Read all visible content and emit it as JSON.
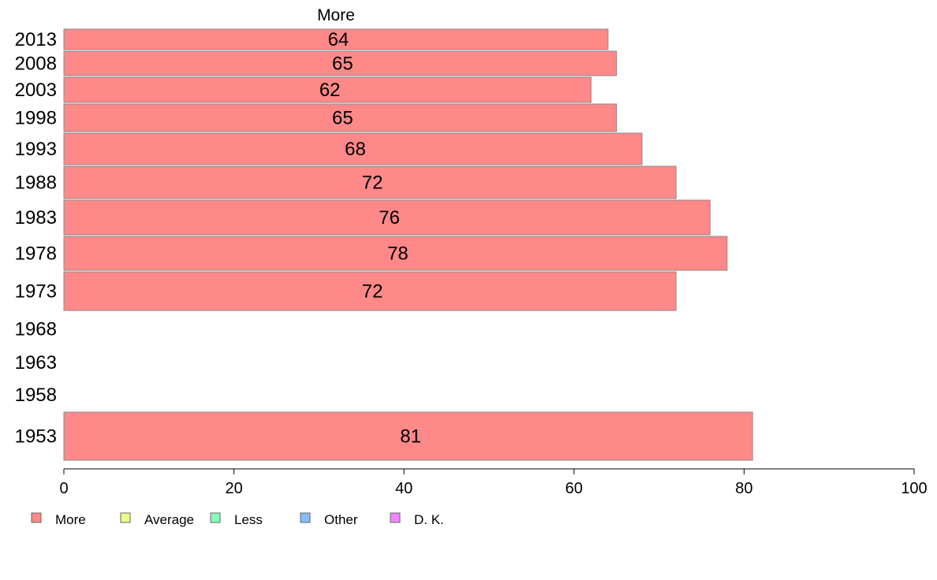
{
  "chart_data": {
    "type": "bar",
    "orientation": "horizontal",
    "title": "",
    "series_title": "More",
    "xlabel": "",
    "ylabel": "",
    "xlim": [
      0,
      100
    ],
    "x_ticks": [
      0,
      20,
      40,
      60,
      80,
      100
    ],
    "grid": false,
    "legend_placement": "bottom-left",
    "categories": [
      "2013",
      "2008",
      "2003",
      "1998",
      "1993",
      "1988",
      "1983",
      "1978",
      "1973",
      "1968",
      "1963",
      "1958",
      "1953"
    ],
    "series": [
      {
        "name": "More",
        "color": "#ff8888",
        "values": [
          64,
          65,
          62,
          65,
          68,
          72,
          76,
          78,
          72,
          null,
          null,
          null,
          81
        ]
      }
    ],
    "legend": [
      {
        "label": "More",
        "color": "#ff8888"
      },
      {
        "label": "Average",
        "color": "#eeff88"
      },
      {
        "label": "Less",
        "color": "#88ffbb"
      },
      {
        "label": "Other",
        "color": "#88bbff"
      },
      {
        "label": "D. K.",
        "color": "#ee88ff"
      }
    ]
  }
}
